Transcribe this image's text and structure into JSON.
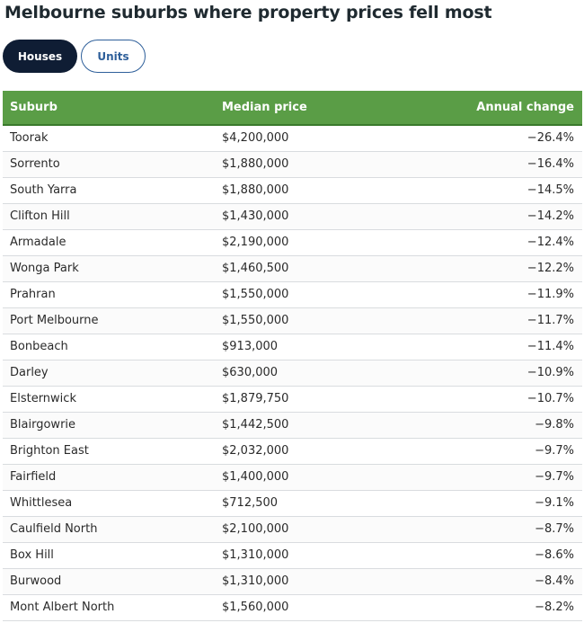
{
  "title": "Melbourne suburbs where property prices fell most",
  "tabs": [
    {
      "label": "Houses",
      "active": true
    },
    {
      "label": "Units",
      "active": false
    }
  ],
  "chart_data": {
    "type": "table",
    "columns": [
      "Suburb",
      "Median price",
      "Annual change"
    ],
    "rows": [
      [
        "Toorak",
        "$4,200,000",
        "−26.4%"
      ],
      [
        "Sorrento",
        "$1,880,000",
        "−16.4%"
      ],
      [
        "South Yarra",
        "$1,880,000",
        "−14.5%"
      ],
      [
        "Clifton Hill",
        "$1,430,000",
        "−14.2%"
      ],
      [
        "Armadale",
        "$2,190,000",
        "−12.4%"
      ],
      [
        "Wonga Park",
        "$1,460,500",
        "−12.2%"
      ],
      [
        "Prahran",
        "$1,550,000",
        "−11.9%"
      ],
      [
        "Port Melbourne",
        "$1,550,000",
        "−11.7%"
      ],
      [
        "Bonbeach",
        "$913,000",
        "−11.4%"
      ],
      [
        "Darley",
        "$630,000",
        "−10.9%"
      ],
      [
        "Elsternwick",
        "$1,879,750",
        "−10.7%"
      ],
      [
        "Blairgowrie",
        "$1,442,500",
        "−9.8%"
      ],
      [
        "Brighton East",
        "$2,032,000",
        "−9.7%"
      ],
      [
        "Fairfield",
        "$1,400,000",
        "−9.7%"
      ],
      [
        "Whittlesea",
        "$712,500",
        "−9.1%"
      ],
      [
        "Caulfield North",
        "$2,100,000",
        "−8.7%"
      ],
      [
        "Box Hill",
        "$1,310,000",
        "−8.6%"
      ],
      [
        "Burwood",
        "$1,310,000",
        "−8.4%"
      ],
      [
        "Mont Albert North",
        "$1,560,000",
        "−8.2%"
      ]
    ]
  },
  "colors": {
    "header_bg": "#5a9d46",
    "active_tab_bg": "#0f1d34",
    "inactive_tab_border": "#2e5f9a"
  }
}
